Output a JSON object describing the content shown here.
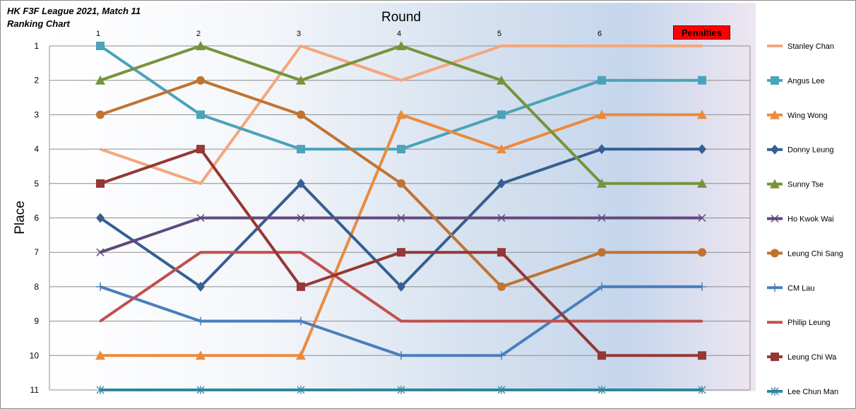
{
  "title": "HK F3F League 2021, Match 11",
  "subtitle": "Ranking Chart",
  "penalties_label": "Penalties",
  "chart_data": {
    "type": "line",
    "xlabel": "Round",
    "ylabel": "Place",
    "x_categories": [
      "1",
      "2",
      "3",
      "4",
      "5",
      "6",
      "Penalties"
    ],
    "x_tick_labels": [
      "1",
      "2",
      "3",
      "4",
      "5",
      "6",
      ""
    ],
    "y_ticks": [
      1,
      2,
      3,
      4,
      5,
      6,
      7,
      8,
      9,
      10,
      11
    ],
    "ylim": [
      11,
      1
    ],
    "y_inverted": true,
    "grid": "horizontal",
    "legend_position": "right",
    "series": [
      {
        "name": "Stanley Chan",
        "color": "#f4a77a",
        "marker": "none",
        "values": [
          4,
          5,
          1,
          2,
          1,
          1,
          1
        ]
      },
      {
        "name": "Angus Lee",
        "color": "#4aa3ba",
        "marker": "square",
        "values": [
          1,
          3,
          4,
          4,
          3,
          2,
          2
        ]
      },
      {
        "name": "Wing Wong",
        "color": "#ec8a3c",
        "marker": "triangle",
        "values": [
          10,
          10,
          10,
          3,
          4,
          3,
          3
        ]
      },
      {
        "name": "Donny Leung",
        "color": "#355f92",
        "marker": "diamond",
        "values": [
          6,
          8,
          5,
          8,
          5,
          4,
          4
        ]
      },
      {
        "name": "Sunny Tse",
        "color": "#76933c",
        "marker": "triangle",
        "values": [
          2,
          1,
          2,
          1,
          2,
          5,
          5
        ]
      },
      {
        "name": "Ho Kwok Wai",
        "color": "#604a7b",
        "marker": "x",
        "values": [
          7,
          6,
          6,
          6,
          6,
          6,
          6
        ]
      },
      {
        "name": "Leung Chi Sang",
        "color": "#c0732f",
        "marker": "circle",
        "values": [
          3,
          2,
          3,
          5,
          8,
          7,
          7
        ]
      },
      {
        "name": "CM Lau",
        "color": "#4a7ebb",
        "marker": "plus",
        "values": [
          8,
          9,
          9,
          10,
          10,
          8,
          8
        ]
      },
      {
        "name": "Philip Leung",
        "color": "#c0504d",
        "marker": "none",
        "values": [
          9,
          7,
          7,
          9,
          9,
          9,
          9
        ]
      },
      {
        "name": "Leung Chi Wa",
        "color": "#953735",
        "marker": "square",
        "values": [
          5,
          4,
          8,
          7,
          7,
          10,
          10
        ]
      },
      {
        "name": "Lee Chun Man",
        "color": "#31859c",
        "marker": "asterisk",
        "values": [
          11,
          11,
          11,
          11,
          11,
          11,
          11
        ]
      }
    ]
  }
}
